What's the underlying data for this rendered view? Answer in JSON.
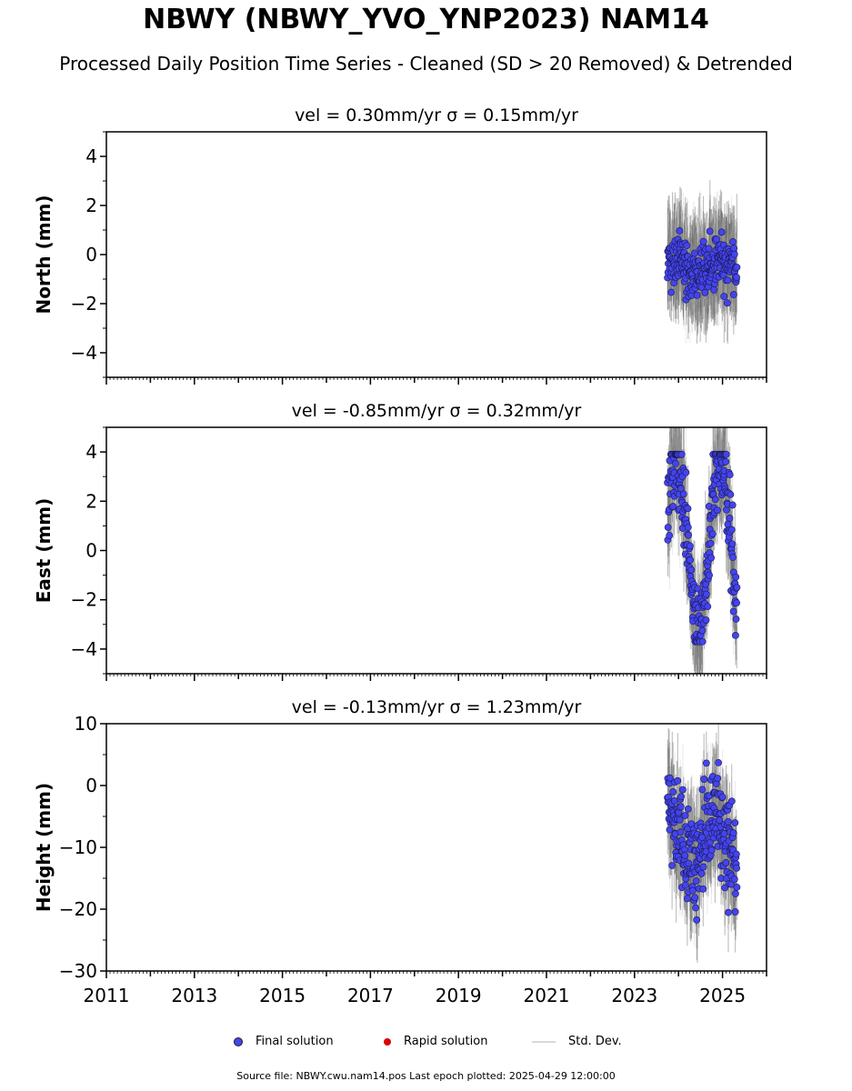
{
  "title": "NBWY (NBWY_YVO_YNP2023) NAM14",
  "subtitle": "Processed Daily Position Time Series - Cleaned (SD > 20 Removed) & Detrended",
  "legend": {
    "final": "Final solution",
    "rapid": "Rapid solution",
    "std": "Std. Dev."
  },
  "footer": "Source file: NBWY.cwu.nam14.pos  Last epoch plotted: 2025-04-29 12:00:00",
  "colors": {
    "final": "#4444ee",
    "rapid": "#dd0000",
    "std_dev": "#d0d0d0",
    "std_dev_dense": "#606060"
  },
  "chart_data": [
    {
      "type": "scatter",
      "title": "vel = 0.30mm/yr   σ = 0.15mm/yr",
      "ylabel": "North (mm)",
      "xlim": [
        2011,
        2026
      ],
      "ylim": [
        -5,
        5
      ],
      "yticks": [
        4,
        2,
        0,
        -2,
        -4
      ],
      "ytick_labels": [
        "4",
        "2",
        "0",
        "−2",
        "−4"
      ],
      "data_span": [
        2023.75,
        2025.33
      ],
      "series": [
        {
          "values_range": [
            -3.2,
            1.7
          ],
          "mean": -0.4
        },
        {
          "values_range": [
            -4.8,
            3.6
          ],
          "typical_sigma": 1.6
        }
      ]
    },
    {
      "type": "scatter",
      "title": "vel = -0.85mm/yr   σ = 0.32mm/yr",
      "ylabel": "East (mm)",
      "xlim": [
        2011,
        2026
      ],
      "ylim": [
        -5,
        5
      ],
      "yticks": [
        4,
        2,
        0,
        -2,
        -4
      ],
      "ytick_labels": [
        "4",
        "2",
        "0",
        "−2",
        "−4"
      ],
      "data_span": [
        2023.75,
        2025.33
      ],
      "series": [
        {
          "values_range": [
            -3.7,
            3.9
          ],
          "mean": 0.3
        },
        {
          "values_range": [
            -4.8,
            5.0
          ],
          "typical_sigma": 1.5
        }
      ]
    },
    {
      "type": "scatter",
      "title": "vel = -0.13mm/yr   σ = 1.23mm/yr",
      "ylabel": "Height (mm)",
      "xlim": [
        2011,
        2026
      ],
      "ylim": [
        -30,
        10
      ],
      "yticks": [
        10,
        0,
        -10,
        -20,
        -30
      ],
      "ytick_labels": [
        "10",
        "0",
        "−10",
        "−20",
        "−30"
      ],
      "xticks": [
        2011,
        2013,
        2015,
        2017,
        2019,
        2021,
        2023,
        2025
      ],
      "xtick_labels": [
        "2011",
        "2013",
        "2015",
        "2017",
        "2019",
        "2021",
        "2023",
        "2025"
      ],
      "data_span": [
        2023.75,
        2025.33
      ],
      "series": [
        {
          "values_range": [
            -26,
            7.5
          ],
          "mean": -9
        },
        {
          "values_range": [
            -30,
            10
          ],
          "typical_sigma": 6
        }
      ]
    }
  ]
}
